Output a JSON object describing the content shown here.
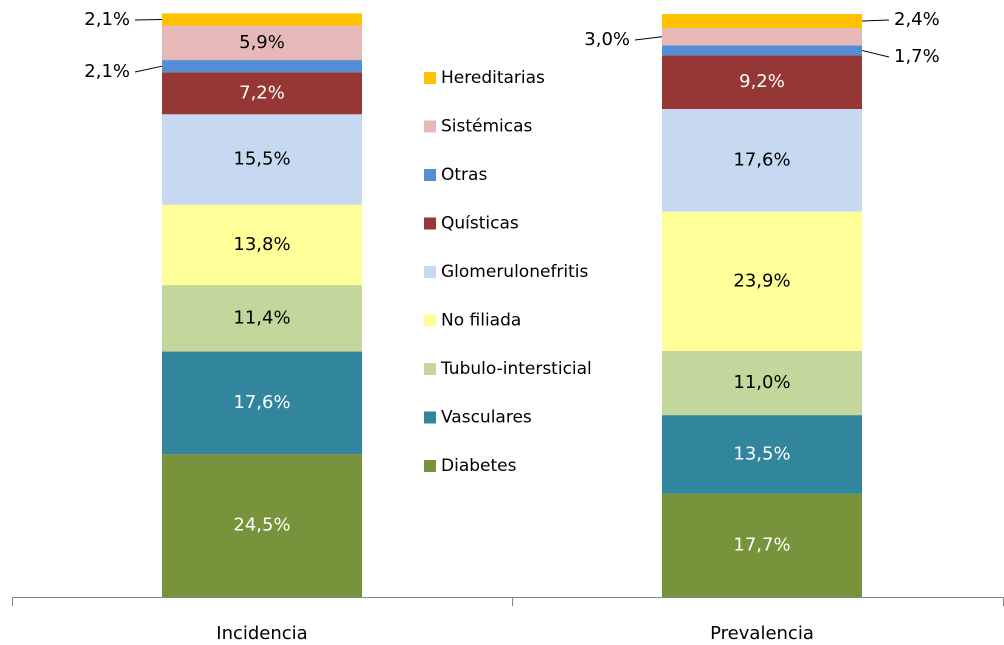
{
  "chart_data": {
    "type": "stacked_bar",
    "categories": [
      "Incidencia",
      "Prevalencia"
    ],
    "ylim": [
      0,
      100
    ],
    "series": [
      {
        "name": "Diabetes",
        "color": "#77933c",
        "label_color": "#ffffff",
        "values": [
          24.5,
          17.7
        ],
        "value_labels": [
          "24,5%",
          "17,7%"
        ]
      },
      {
        "name": "Vasculares",
        "color": "#31859c",
        "label_color": "#ffffff",
        "values": [
          17.6,
          13.5
        ],
        "value_labels": [
          "17,6%",
          "13,5%"
        ]
      },
      {
        "name": "Tubulo-intersticial",
        "color": "#c3d69b",
        "label_color": "#000000",
        "values": [
          11.4,
          11.0
        ],
        "value_labels": [
          "11,4%",
          "11,0%"
        ]
      },
      {
        "name": "No filiada",
        "color": "#ffff99",
        "label_color": "#000000",
        "values": [
          13.8,
          23.9
        ],
        "value_labels": [
          "13,8%",
          "23,9%"
        ]
      },
      {
        "name": "Glomerulonefritis",
        "color": "#c6d9f1",
        "label_color": "#000000",
        "values": [
          15.5,
          17.6
        ],
        "value_labels": [
          "15,5%",
          "17,6%"
        ]
      },
      {
        "name": "Quísticas",
        "color": "#953735",
        "label_color": "#ffffff",
        "values": [
          7.2,
          9.2
        ],
        "value_labels": [
          "7,2%",
          "9,2%"
        ]
      },
      {
        "name": "Otras",
        "color": "#558ed5",
        "label_color": "#000000",
        "values": [
          2.1,
          1.7
        ],
        "value_labels": [
          "2,1%",
          "1,7%"
        ]
      },
      {
        "name": "Sistémicas",
        "color": "#e6b9b8",
        "label_color": "#000000",
        "values": [
          5.9,
          3.0
        ],
        "value_labels": [
          "5,9%",
          "3,0%"
        ]
      },
      {
        "name": "Hereditarias",
        "color": "#ffc000",
        "label_color": "#000000",
        "values": [
          2.1,
          2.4
        ],
        "value_labels": [
          "2,1%",
          "2,4%"
        ]
      }
    ]
  }
}
